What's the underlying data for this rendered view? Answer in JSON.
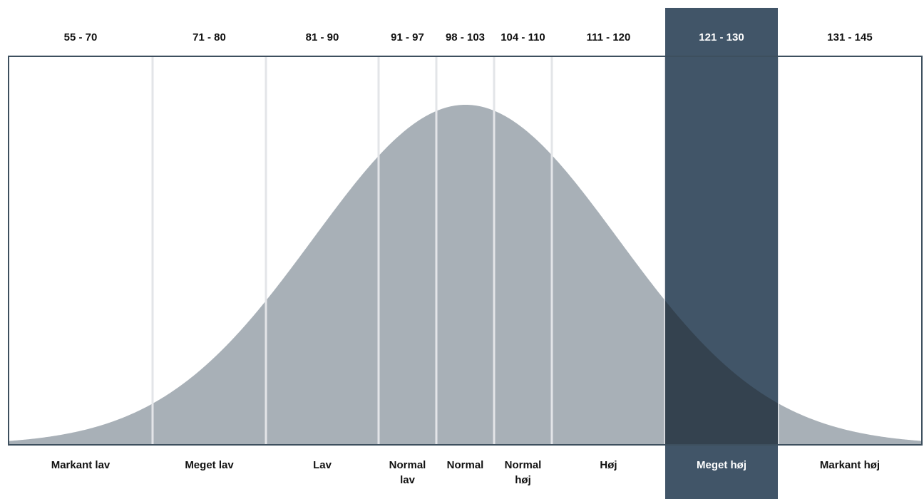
{
  "chart_data": {
    "type": "area",
    "description_labels": false,
    "bands": [
      {
        "range": "55 - 70",
        "label": [
          "Markant lav"
        ],
        "iq_min": 55,
        "iq_max": 70
      },
      {
        "range": "71 - 80",
        "label": [
          "Meget lav"
        ],
        "iq_min": 70,
        "iq_max": 80
      },
      {
        "range": "81 - 90",
        "label": [
          "Lav"
        ],
        "iq_min": 80,
        "iq_max": 90
      },
      {
        "range": "91 - 97",
        "label": [
          "Normal",
          "lav"
        ],
        "iq_min": 90,
        "iq_max": 95
      },
      {
        "range": "98 - 103",
        "label": [
          "Normal"
        ],
        "iq_min": 95,
        "iq_max": 100
      },
      {
        "range": "104 - 110",
        "label": [
          "Normal",
          "høj"
        ],
        "iq_min": 100,
        "iq_max": 105
      },
      {
        "range": "111 - 120",
        "label": [
          "Høj"
        ],
        "iq_min": 105,
        "iq_max": 115
      },
      {
        "range": "121 - 130",
        "label": [
          "Meget høj"
        ],
        "iq_min": 115,
        "iq_max": 125
      },
      {
        "range": "131 - 145",
        "label": [
          "Markant høj"
        ],
        "iq_min": 125,
        "iq_max": 145
      }
    ],
    "highlighted_range": "121 - 130",
    "distribution": {
      "mean": 97.5,
      "sd": 15,
      "x_min": 55,
      "x_max": 145
    },
    "colors": {
      "curve_fill": "#a8b0b7",
      "highlight": "#415568",
      "frame": "#3d4f5e",
      "divider": "#e3e5e8",
      "text": "#111111",
      "highlight_text": "#ffffff"
    }
  }
}
